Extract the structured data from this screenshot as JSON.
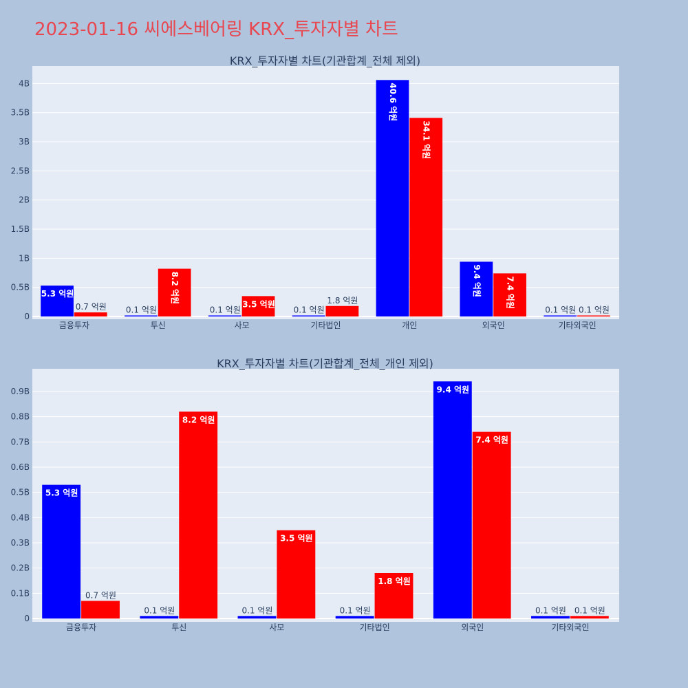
{
  "title": "2023-01-16 씨에스베어링 KRX_투자자별 차트",
  "colors": {
    "series1": "#0000ff",
    "series2": "#ff0000",
    "title": "#e8474f",
    "plot_bg": "#e5ecf6",
    "page_bg": "#b0c4de"
  },
  "chart_data": [
    {
      "type": "bar",
      "title": "KRX_투자자별 차트(기관합계_전체 제외)",
      "categories": [
        "금융투자",
        "투신",
        "사모",
        "기타법인",
        "개인",
        "외국인",
        "기타외국인"
      ],
      "series": [
        {
          "values": [
            530000000,
            10000000,
            10000000,
            10000000,
            4060000000,
            940000000,
            10000000
          ],
          "labels": [
            "5.3 억원",
            "0.1 억원",
            "0.1 억원",
            "0.1 억원",
            "40.6 억원",
            "9.4 억원",
            "0.1 억원"
          ]
        },
        {
          "values": [
            70000000,
            820000000,
            350000000,
            180000000,
            3410000000,
            740000000,
            10000000
          ],
          "labels": [
            "0.7 억원",
            "8.2 억원",
            "3.5 억원",
            "1.8 억원",
            "34.1 억원",
            "7.4 억원",
            "0.1 억원"
          ]
        }
      ],
      "ylim": [
        0,
        4300000000
      ],
      "yticks": [
        0,
        500000000,
        1000000000,
        1500000000,
        2000000000,
        2500000000,
        3000000000,
        3500000000,
        4000000000
      ],
      "ytick_labels": [
        "0",
        "0.5B",
        "1B",
        "1.5B",
        "2B",
        "2.5B",
        "3B",
        "3.5B",
        "4B"
      ],
      "grid": true,
      "xlabel": "",
      "ylabel": ""
    },
    {
      "type": "bar",
      "title": "KRX_투자자별 차트(기관합계_전체_개인 제외)",
      "categories": [
        "금융투자",
        "투신",
        "사모",
        "기타법인",
        "외국인",
        "기타외국인"
      ],
      "series": [
        {
          "values": [
            530000000,
            10000000,
            10000000,
            10000000,
            940000000,
            10000000
          ],
          "labels": [
            "5.3 억원",
            "0.1 억원",
            "0.1 억원",
            "0.1 억원",
            "9.4 억원",
            "0.1 억원"
          ]
        },
        {
          "values": [
            70000000,
            820000000,
            350000000,
            180000000,
            740000000,
            10000000
          ],
          "labels": [
            "0.7 억원",
            "8.2 억원",
            "3.5 억원",
            "1.8 억원",
            "7.4 억원",
            "0.1 억원"
          ]
        }
      ],
      "ylim": [
        0,
        990000000
      ],
      "yticks": [
        0,
        100000000,
        200000000,
        300000000,
        400000000,
        500000000,
        600000000,
        700000000,
        800000000,
        900000000
      ],
      "ytick_labels": [
        "0",
        "0.1B",
        "0.2B",
        "0.3B",
        "0.4B",
        "0.5B",
        "0.6B",
        "0.7B",
        "0.8B",
        "0.9B"
      ],
      "grid": true,
      "xlabel": "",
      "ylabel": ""
    }
  ]
}
